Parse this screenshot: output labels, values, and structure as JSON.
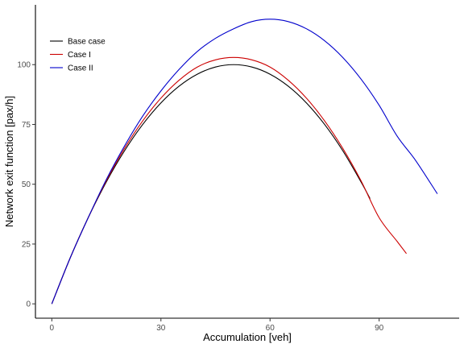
{
  "chart_data": {
    "type": "line",
    "xlabel": "Accumulation [veh]",
    "ylabel": "Network exit function [pax/h]",
    "xlim": [
      -4.5,
      112
    ],
    "ylim": [
      -6,
      125
    ],
    "xticks": [
      0,
      30,
      60,
      90
    ],
    "yticks": [
      0,
      25,
      50,
      75,
      100
    ],
    "grid": false,
    "legend_position": "top-left",
    "series": [
      {
        "name": "Base case",
        "color": "#000000",
        "x": [
          0,
          5,
          10,
          15,
          20,
          25,
          30,
          35,
          40,
          45,
          50,
          55,
          60,
          65,
          70,
          75,
          80,
          85,
          87.5
        ],
        "y": [
          0,
          19,
          36,
          51,
          64,
          75,
          84,
          91,
          96,
          99,
          100,
          99,
          96,
          91,
          84,
          75,
          64,
          51,
          44
        ]
      },
      {
        "name": "Case I",
        "color": "#cc0000",
        "x": [
          0,
          5,
          10,
          15,
          20,
          25,
          30,
          35,
          40,
          45,
          50,
          55,
          60,
          65,
          70,
          75,
          80,
          85,
          90,
          95,
          97.5
        ],
        "y": [
          0,
          19,
          36,
          51.5,
          65,
          76.5,
          86,
          93.5,
          99,
          102,
          103,
          102,
          99,
          93.5,
          86,
          76.5,
          65,
          51.5,
          36,
          26,
          21
        ]
      },
      {
        "name": "Case II",
        "color": "#0000cc",
        "x": [
          0,
          5,
          10,
          15,
          20,
          25,
          30,
          35,
          40,
          45,
          50,
          55,
          60,
          65,
          70,
          75,
          80,
          85,
          90,
          95,
          100,
          106
        ],
        "y": [
          0,
          19,
          36,
          52,
          66,
          78.5,
          89,
          98,
          105.5,
          111,
          115,
          118,
          119,
          118,
          115,
          110,
          103,
          94,
          83,
          70,
          60,
          46
        ]
      }
    ]
  }
}
